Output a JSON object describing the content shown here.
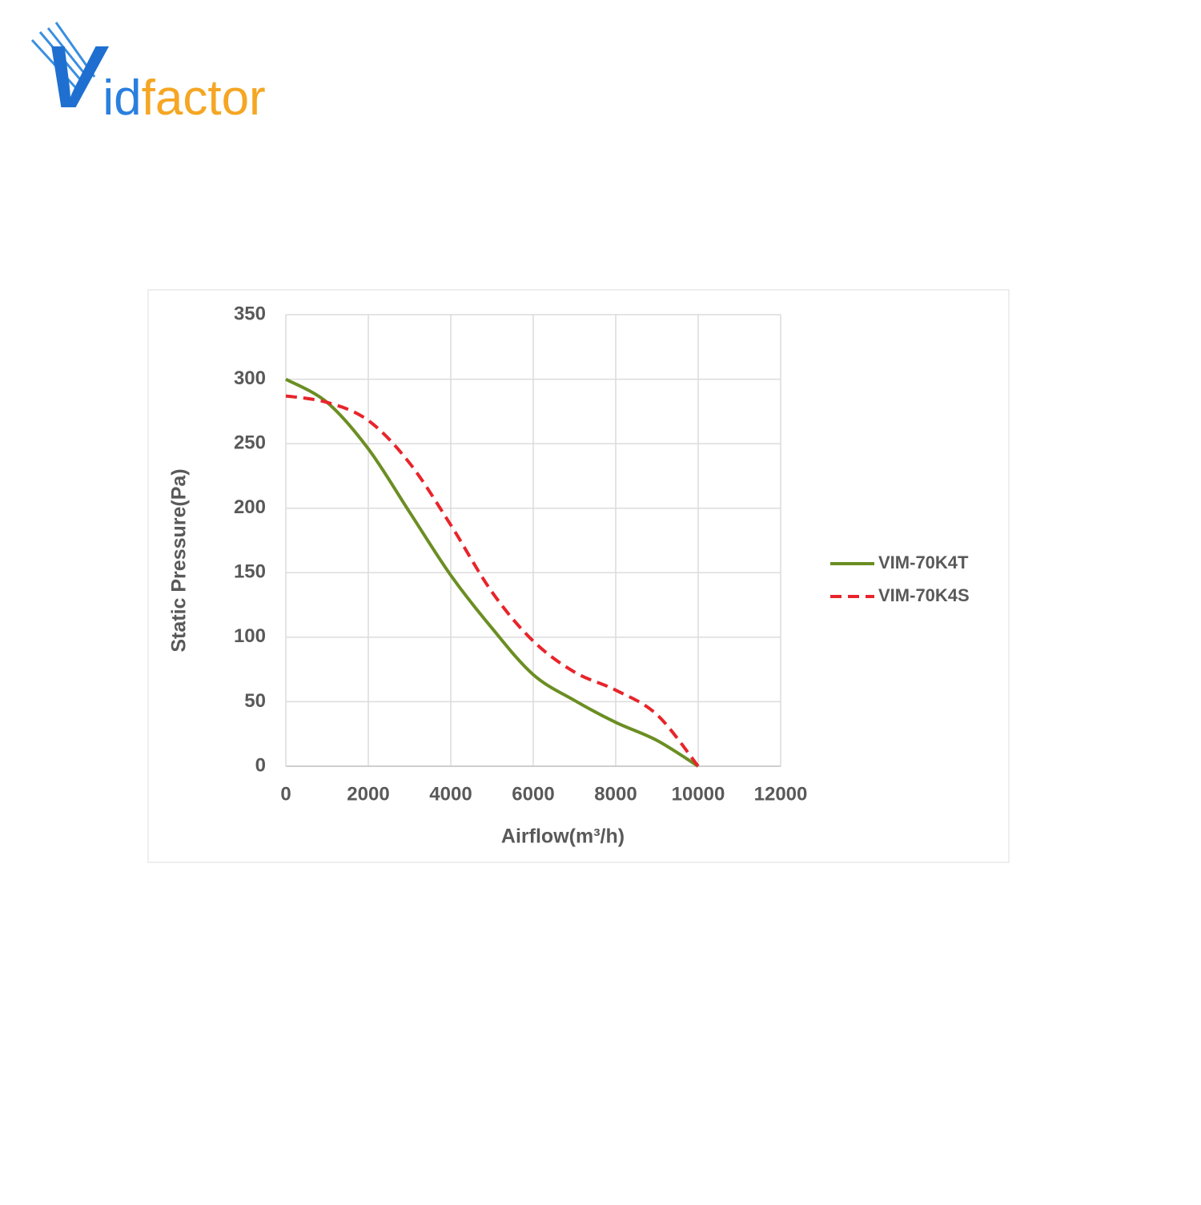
{
  "brand": [
    "V",
    "id",
    "factor"
  ],
  "chart_data": {
    "type": "line",
    "x_label": "Airflow(m³/h)",
    "y_label": "Static Pressure(Pa)",
    "x": [
      0,
      1000,
      2000,
      3000,
      4000,
      5000,
      6000,
      7000,
      8000,
      9000,
      10000
    ],
    "series": [
      {
        "name": "VIM-70K4T",
        "color": "#6b8e23",
        "dash": false,
        "values": [
          300,
          282,
          246,
          197,
          148,
          107,
          71,
          51,
          34,
          20,
          0
        ]
      },
      {
        "name": "VIM-70K4S",
        "color": "#e8242b",
        "dash": true,
        "values": [
          287,
          282,
          268,
          235,
          187,
          135,
          97,
          73,
          59,
          40,
          0
        ]
      }
    ],
    "xlim": [
      0,
      12000
    ],
    "xticks": [
      0,
      2000,
      4000,
      6000,
      8000,
      10000,
      12000
    ],
    "ylim": [
      0,
      350
    ],
    "yticks": [
      0,
      50,
      100,
      150,
      200,
      250,
      300,
      350
    ],
    "grid": true,
    "legend": "right"
  }
}
